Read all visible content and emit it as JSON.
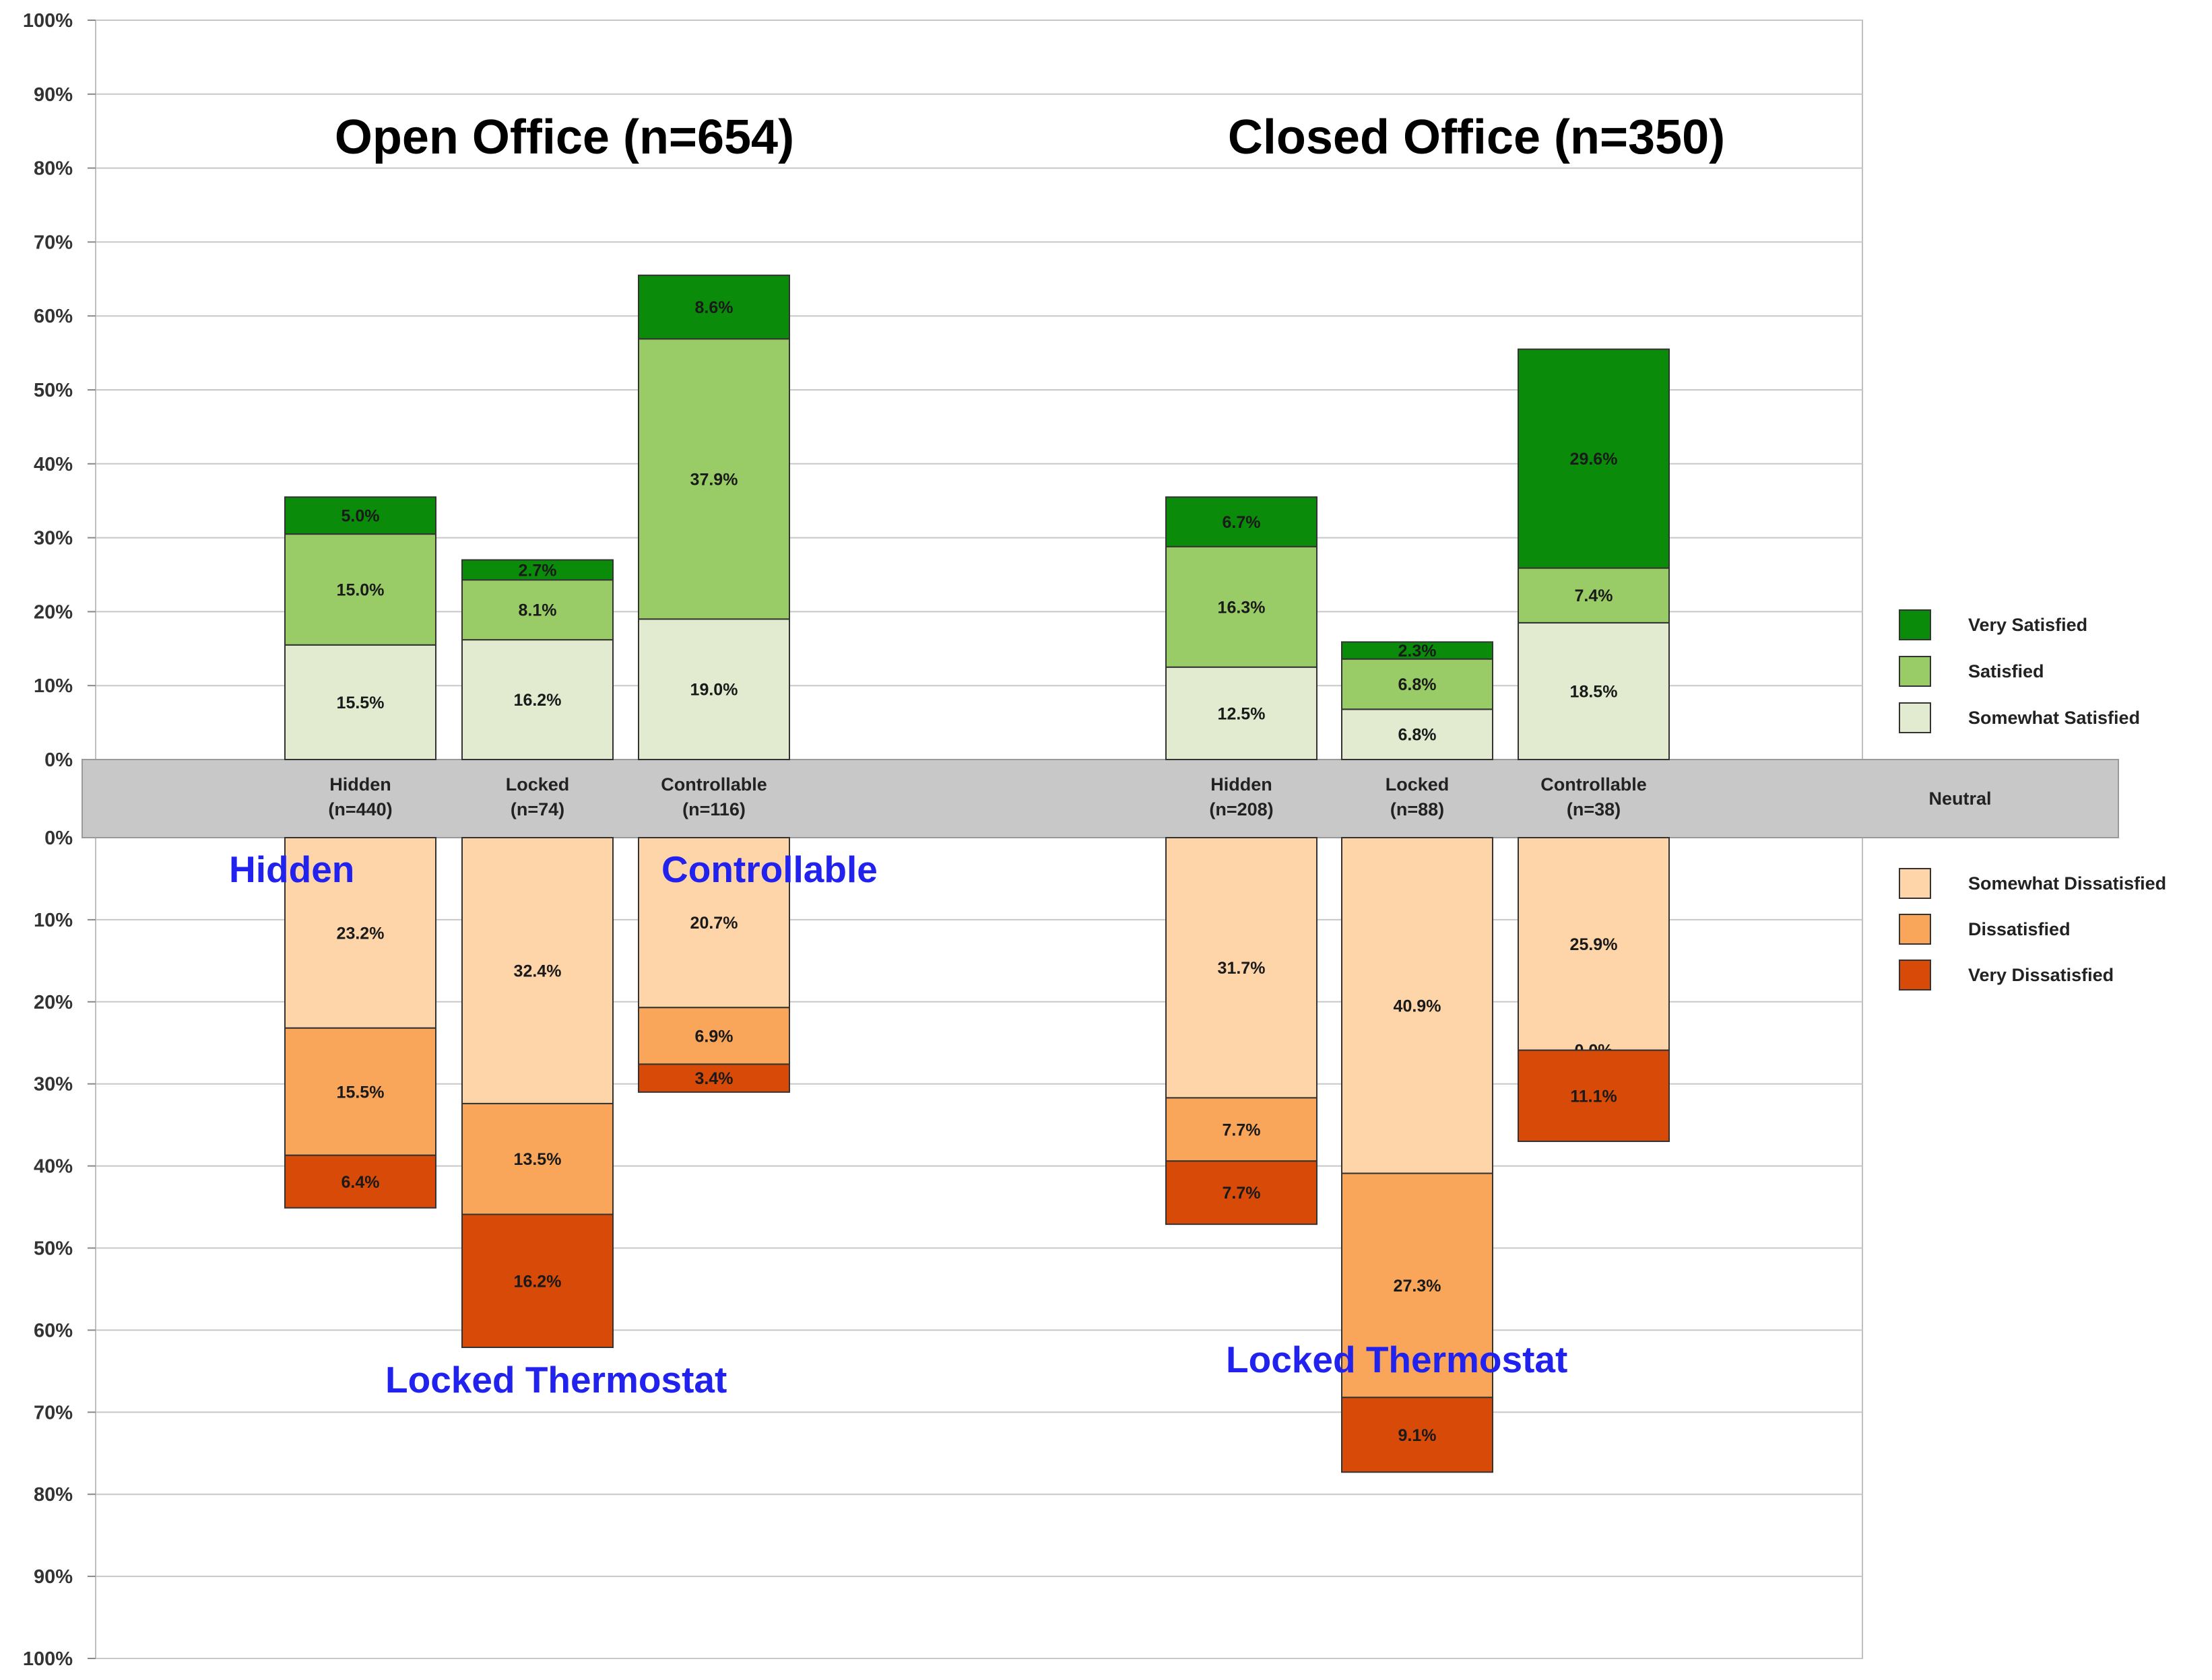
{
  "chart_data": {
    "type": "bar",
    "subtype": "diverging-stacked",
    "y_axis": {
      "upper_ticks": [
        "100%",
        "90%",
        "80%",
        "70%",
        "60%",
        "50%",
        "40%",
        "30%",
        "20%",
        "10%",
        "0%"
      ],
      "lower_ticks": [
        "0%",
        "10%",
        "20%",
        "30%",
        "40%",
        "50%",
        "60%",
        "70%",
        "80%",
        "90%",
        "100%"
      ],
      "range": [
        -100,
        100
      ],
      "grid": true
    },
    "neutral_band_label": "Neutral",
    "groups": [
      {
        "title": "Open Office (n=654)",
        "bars": [
          {
            "category": "Hidden",
            "n": "(n=440)",
            "positive": [
              15.5,
              15.0,
              5.0
            ],
            "positive_labels": [
              "15.5%",
              "15.0%",
              "5.0%"
            ],
            "negative": [
              23.2,
              15.5,
              6.4
            ],
            "negative_labels": [
              "23.2%",
              "15.5%",
              "6.4%"
            ]
          },
          {
            "category": "Locked",
            "n": "(n=74)",
            "positive": [
              16.2,
              8.1,
              2.7
            ],
            "positive_labels": [
              "16.2%",
              "8.1%",
              "2.7%"
            ],
            "negative": [
              32.4,
              13.5,
              16.2
            ],
            "negative_labels": [
              "32.4%",
              "13.5%",
              "16.2%"
            ]
          },
          {
            "category": "Controllable",
            "n": "(n=116)",
            "positive": [
              19.0,
              37.9,
              8.6
            ],
            "positive_labels": [
              "19.0%",
              "37.9%",
              "8.6%"
            ],
            "negative": [
              20.7,
              6.9,
              3.4
            ],
            "negative_labels": [
              "20.7%",
              "6.9%",
              "3.4%"
            ]
          }
        ]
      },
      {
        "title": "Closed Office (n=350)",
        "bars": [
          {
            "category": "Hidden",
            "n": "(n=208)",
            "positive": [
              12.5,
              16.3,
              6.7
            ],
            "positive_labels": [
              "12.5%",
              "16.3%",
              "6.7%"
            ],
            "negative": [
              31.7,
              7.7,
              7.7
            ],
            "negative_labels": [
              "31.7%",
              "7.7%",
              "7.7%"
            ]
          },
          {
            "category": "Locked",
            "n": "(n=88)",
            "positive": [
              6.8,
              6.8,
              2.3
            ],
            "positive_labels": [
              "6.8%",
              "6.8%",
              "2.3%"
            ],
            "negative": [
              40.9,
              27.3,
              9.1
            ],
            "negative_labels": [
              "40.9%",
              "27.3%",
              "9.1%"
            ]
          },
          {
            "category": "Controllable",
            "n": "(n=38)",
            "positive": [
              18.5,
              7.4,
              29.6
            ],
            "positive_labels": [
              "18.5%",
              "7.4%",
              "29.6%"
            ],
            "negative": [
              25.9,
              0.0,
              11.1
            ],
            "negative_labels": [
              "25.9%",
              "0.0%",
              "11.1%"
            ]
          }
        ]
      }
    ],
    "series_positive": [
      {
        "name": "Somewhat Satisfied",
        "color": "#e2ebcf"
      },
      {
        "name": "Satisfied",
        "color": "#99cc66"
      },
      {
        "name": "Very Satisfied",
        "color": "#0a8c0a"
      }
    ],
    "series_negative": [
      {
        "name": "Somewhat Dissatisfied",
        "color": "#fdd5a8"
      },
      {
        "name": "Dissatisfied",
        "color": "#f9a55a"
      },
      {
        "name": "Very Dissatisfied",
        "color": "#d84a08"
      }
    ],
    "legend_order": [
      "Very Satisfied",
      "Satisfied",
      "Somewhat Satisfied",
      "Neutral",
      "Somewhat Dissatisfied",
      "Dissatisfied",
      "Very Dissatisfied"
    ],
    "legend_position": "right",
    "neutral_color": "#c8c8c8",
    "annotations": [
      {
        "text": "Hidden",
        "group": 0,
        "anchor": "below-bar",
        "bar": 0
      },
      {
        "text": "Controllable",
        "group": 0,
        "anchor": "below-bar",
        "bar": 2
      },
      {
        "text": "Locked Thermostat",
        "group": 0,
        "anchor": "under-bar",
        "bar": 1
      },
      {
        "text": "Locked Thermostat",
        "group": 1,
        "anchor": "under-bar",
        "bar": 1
      }
    ]
  }
}
